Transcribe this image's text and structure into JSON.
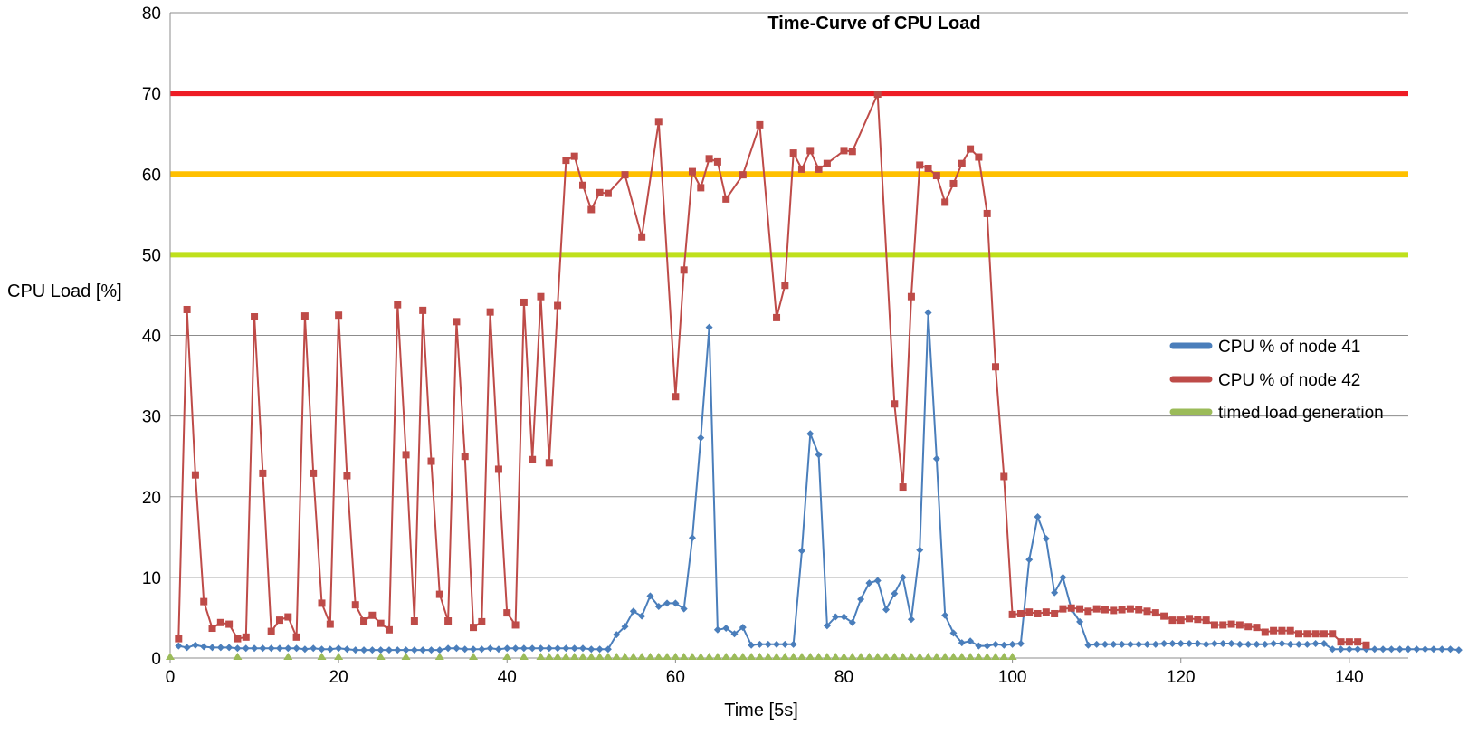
{
  "chart_data": {
    "type": "line",
    "title": "Time-Curve of CPU Load",
    "xlabel": "Time [5s]",
    "ylabel": "CPU Load [%]",
    "xlim": [
      0,
      147
    ],
    "ylim": [
      0,
      80
    ],
    "x_ticks": [
      0,
      20,
      40,
      60,
      80,
      100,
      120,
      140
    ],
    "y_ticks": [
      0,
      10,
      20,
      30,
      40,
      50,
      60,
      70,
      80
    ],
    "grid": "horizontal",
    "legend_position": "right",
    "thresholds": [
      {
        "value": 70,
        "color": "#ee1c25"
      },
      {
        "value": 60,
        "color": "#ffc000"
      },
      {
        "value": 50,
        "color": "#bfe01c"
      }
    ],
    "series": [
      {
        "name": "CPU % of node 41",
        "color": "#4a7ebb",
        "marker": "diamond",
        "x_start": 1,
        "values": [
          1.5,
          1.3,
          1.6,
          1.4,
          1.3,
          1.3,
          1.3,
          1.2,
          1.2,
          1.2,
          1.2,
          1.2,
          1.2,
          1.2,
          1.2,
          1.1,
          1.2,
          1.1,
          1.1,
          1.2,
          1.1,
          1.0,
          1.0,
          1.0,
          1.0,
          1.0,
          1.0,
          1.0,
          1.0,
          1.0,
          1.0,
          1.0,
          1.2,
          1.2,
          1.1,
          1.1,
          1.1,
          1.2,
          1.1,
          1.2,
          1.2,
          1.2,
          1.2,
          1.2,
          1.2,
          1.2,
          1.2,
          1.2,
          1.2,
          1.1,
          1.1,
          1.1,
          2.9,
          3.9,
          5.8,
          5.2,
          7.7,
          6.4,
          6.8,
          6.8,
          6.1,
          14.9,
          27.3,
          41.0,
          3.5,
          3.7,
          3.0,
          3.8,
          1.6,
          1.7,
          1.7,
          1.7,
          1.7,
          1.7,
          13.3,
          27.8,
          25.2,
          4.0,
          5.1,
          5.1,
          4.4,
          7.3,
          9.3,
          9.6,
          6.0,
          8.0,
          10.0,
          4.8,
          13.4,
          42.8,
          24.7,
          5.3,
          3.1,
          1.9,
          2.1,
          1.5,
          1.5,
          1.7,
          1.6,
          1.7,
          1.8,
          12.2,
          17.5,
          14.8,
          8.1,
          10.0,
          6.1,
          4.5,
          1.6,
          1.7,
          1.7,
          1.7,
          1.7,
          1.7,
          1.7,
          1.7,
          1.7,
          1.8,
          1.8,
          1.8,
          1.8,
          1.8,
          1.7,
          1.8,
          1.8,
          1.8,
          1.7,
          1.7,
          1.7,
          1.7,
          1.8,
          1.8,
          1.7,
          1.7,
          1.7,
          1.8,
          1.8,
          1.1,
          1.1,
          1.1,
          1.1,
          1.1,
          1.1,
          1.1,
          1.1,
          1.1,
          1.1,
          1.1,
          1.1,
          1.1,
          1.1,
          1.1,
          1.0
        ]
      },
      {
        "name": "CPU % of node 42",
        "color": "#be4b48",
        "marker": "square",
        "x_start": 1,
        "values": [
          2.4,
          43.2,
          22.7,
          7.0,
          3.7,
          4.4,
          4.2,
          2.4,
          2.6,
          42.3,
          22.9,
          3.3,
          4.7,
          5.1,
          2.6,
          42.4,
          22.9,
          6.8,
          4.2,
          42.5,
          22.6,
          6.6,
          4.6,
          5.3,
          4.3,
          3.5,
          43.8,
          25.2,
          4.6,
          43.1,
          24.4,
          7.9,
          4.6,
          41.7,
          25.0,
          3.8,
          4.5,
          42.9,
          23.4,
          5.6,
          4.1,
          44.1,
          24.6,
          44.8,
          24.2,
          43.7,
          61.7,
          62.2,
          58.6,
          55.6,
          57.7,
          57.6,
          59.9,
          52.2,
          66.5,
          32.4,
          48.1,
          60.3,
          58.3,
          61.9,
          61.5,
          56.9,
          59.9,
          66.1,
          42.2,
          46.2,
          62.6,
          60.6,
          62.9,
          60.6,
          61.3,
          62.9,
          62.8,
          69.9,
          31.5,
          21.2,
          44.8,
          61.1,
          60.7,
          59.8,
          56.5,
          58.8,
          61.3,
          63.1,
          62.1,
          55.1,
          36.1,
          22.5,
          5.4,
          5.5,
          5.7,
          5.5,
          5.7,
          5.5,
          6.1,
          6.2,
          6.1,
          5.8,
          6.1,
          6.0,
          5.9,
          6.0,
          6.1,
          6.0,
          5.8,
          5.6,
          5.2,
          4.7,
          4.7,
          4.9,
          4.8,
          4.7,
          4.1,
          4.1,
          4.2,
          4.1,
          3.9,
          3.8,
          3.2,
          3.4,
          3.4,
          3.4,
          3.0,
          3.0,
          3.0,
          3.0,
          3.0,
          2.0,
          2.0,
          2.0,
          1.6
        ],
        "x_values": [
          1,
          2,
          3,
          4,
          5,
          6,
          7,
          8,
          9,
          10,
          11,
          12,
          13,
          14,
          15,
          16,
          17,
          18,
          19,
          20,
          21,
          22,
          23,
          24,
          25,
          26,
          27,
          28,
          29,
          30,
          31,
          32,
          33,
          34,
          35,
          36,
          37,
          38,
          39,
          40,
          41,
          42,
          43,
          44,
          45,
          46,
          47,
          48,
          49,
          50,
          51,
          52,
          54,
          56,
          58,
          60,
          61,
          62,
          63,
          64,
          65,
          66,
          68,
          70,
          72,
          73,
          74,
          75,
          76,
          77,
          78,
          80,
          81,
          84,
          86,
          87,
          88,
          89,
          90,
          91,
          92,
          93,
          94,
          95,
          96,
          97,
          98,
          99,
          100,
          101,
          102,
          103,
          104,
          105,
          106,
          107,
          108,
          109,
          110,
          111,
          112,
          113,
          114,
          115,
          116,
          117,
          118,
          119,
          120,
          121,
          122,
          123,
          124,
          125,
          126,
          127,
          128,
          129,
          130,
          131,
          132,
          133,
          134,
          135,
          136,
          137,
          138,
          139,
          140,
          141,
          142
        ]
      },
      {
        "name": "timed load generation",
        "color": "#9bbb59",
        "marker": "triangle",
        "values_note": "",
        "x_values": [
          0,
          8,
          14,
          18,
          20,
          25,
          28,
          32,
          36,
          40,
          42,
          44,
          45,
          46,
          47,
          48,
          49,
          50,
          51,
          52,
          53,
          54,
          55,
          56,
          57,
          58,
          59,
          60,
          61,
          62,
          63,
          64,
          65,
          66,
          67,
          68,
          69,
          70,
          71,
          72,
          73,
          74,
          75,
          76,
          77,
          78,
          79,
          80,
          81,
          82,
          83,
          84,
          85,
          86,
          87,
          88,
          89,
          90,
          91,
          92,
          93,
          94,
          95,
          96,
          97,
          98,
          99,
          100
        ],
        "y_value": 0
      }
    ]
  }
}
